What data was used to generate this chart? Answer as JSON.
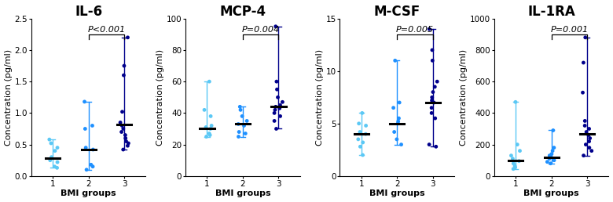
{
  "panels": [
    {
      "title": "IL-6",
      "ylabel": "Concentration (pg/ml)",
      "ylim": [
        0,
        2.5
      ],
      "yticks": [
        0.0,
        0.5,
        1.0,
        1.5,
        2.0,
        2.5
      ],
      "yticklabels": [
        "0.0",
        "0.5",
        "1.0",
        "1.5",
        "2.0",
        "2.5"
      ],
      "pval_text": "P<0.001",
      "pval_subtitle": false,
      "pval_groups": [
        2,
        3
      ],
      "groups": [
        {
          "x": 1,
          "color": "#5BC8F5",
          "points": [
            0.13,
            0.15,
            0.22,
            0.25,
            0.3,
            0.4,
            0.45,
            0.52,
            0.58
          ],
          "median": 0.28,
          "whisker_low": 0.13,
          "whisker_high": 0.58
        },
        {
          "x": 2,
          "color": "#1E90FF",
          "points": [
            0.1,
            0.15,
            0.18,
            0.42,
            0.45,
            0.75,
            0.8,
            1.18
          ],
          "median": 0.42,
          "whisker_low": 0.1,
          "whisker_high": 1.18
        },
        {
          "x": 3,
          "color": "#00008B",
          "points": [
            0.42,
            0.48,
            0.52,
            0.55,
            0.6,
            0.65,
            0.7,
            0.75,
            0.8,
            0.85,
            1.02,
            1.6,
            1.75,
            2.2
          ],
          "median": 0.82,
          "whisker_low": 0.42,
          "whisker_high": 2.2
        }
      ]
    },
    {
      "title": "MCP-4",
      "ylabel": "Concentration (pg/ml)",
      "ylim": [
        0,
        100
      ],
      "yticks": [
        0,
        20,
        40,
        60,
        80,
        100
      ],
      "yticklabels": [
        "0",
        "20",
        "40",
        "60",
        "80",
        "100"
      ],
      "pval_text": "P=0.004",
      "pval_subtitle": true,
      "pval_groups": [
        2,
        3
      ],
      "groups": [
        {
          "x": 1,
          "color": "#5BC8F5",
          "points": [
            25,
            26,
            27,
            30,
            31,
            32,
            38,
            42,
            60
          ],
          "median": 30,
          "whisker_low": 25,
          "whisker_high": 60
        },
        {
          "x": 2,
          "color": "#1E90FF",
          "points": [
            25,
            27,
            28,
            32,
            33,
            35,
            38,
            42,
            44
          ],
          "median": 33,
          "whisker_low": 25,
          "whisker_high": 44
        },
        {
          "x": 3,
          "color": "#00008B",
          "points": [
            30,
            35,
            38,
            40,
            42,
            43,
            44,
            45,
            47,
            50,
            55,
            60,
            95
          ],
          "median": 44,
          "whisker_low": 30,
          "whisker_high": 95
        }
      ]
    },
    {
      "title": "M-CSF",
      "ylabel": "Concentration (pg/ml)",
      "ylim": [
        0,
        15
      ],
      "yticks": [
        0,
        5,
        10,
        15
      ],
      "yticklabels": [
        "0",
        "5",
        "10",
        "15"
      ],
      "pval_text": "P=0.005",
      "pval_subtitle": true,
      "pval_groups": [
        2,
        3
      ],
      "groups": [
        {
          "x": 1,
          "color": "#5BC8F5",
          "points": [
            2.0,
            2.8,
            3.2,
            3.5,
            4.0,
            4.2,
            4.8,
            5.0,
            6.0
          ],
          "median": 4.0,
          "whisker_low": 2.0,
          "whisker_high": 6.0
        },
        {
          "x": 2,
          "color": "#1E90FF",
          "points": [
            3.0,
            3.5,
            4.2,
            5.0,
            5.2,
            5.5,
            6.5,
            7.0,
            11.0
          ],
          "median": 5.0,
          "whisker_low": 3.0,
          "whisker_high": 11.0
        },
        {
          "x": 3,
          "color": "#00008B",
          "points": [
            2.8,
            3.0,
            5.5,
            6.0,
            6.5,
            7.0,
            7.2,
            7.5,
            8.0,
            8.5,
            9.0,
            11.0,
            12.0,
            14.0
          ],
          "median": 7.0,
          "whisker_low": 2.8,
          "whisker_high": 14.0
        }
      ]
    },
    {
      "title": "IL-1RA",
      "ylabel": "Concentration (pg/ml)",
      "ylim": [
        0,
        1000
      ],
      "yticks": [
        0,
        200,
        400,
        600,
        800,
        1000
      ],
      "yticklabels": [
        "0",
        "200",
        "400",
        "600",
        "800",
        "1000"
      ],
      "pval_text": "P=0.001",
      "pval_subtitle": true,
      "pval_groups": [
        2,
        3
      ],
      "groups": [
        {
          "x": 1,
          "color": "#5BC8F5",
          "points": [
            45,
            55,
            65,
            80,
            95,
            110,
            130,
            160,
            200,
            470
          ],
          "median": 100,
          "whisker_low": 45,
          "whisker_high": 470
        },
        {
          "x": 2,
          "color": "#1E90FF",
          "points": [
            80,
            90,
            100,
            110,
            120,
            130,
            140,
            160,
            180,
            290
          ],
          "median": 120,
          "whisker_low": 80,
          "whisker_high": 290
        },
        {
          "x": 3,
          "color": "#00008B",
          "points": [
            130,
            160,
            180,
            200,
            220,
            240,
            260,
            280,
            300,
            320,
            350,
            530,
            720,
            880
          ],
          "median": 270,
          "whisker_low": 130,
          "whisker_high": 880
        }
      ]
    }
  ],
  "xlabel": "BMI groups",
  "xticks": [
    1,
    2,
    3
  ],
  "background_color": "#ffffff",
  "title_fontsize": 12,
  "subtitle_fontsize": 8,
  "axis_label_fontsize": 8,
  "tick_fontsize": 7.5,
  "pval_fontsize": 8
}
